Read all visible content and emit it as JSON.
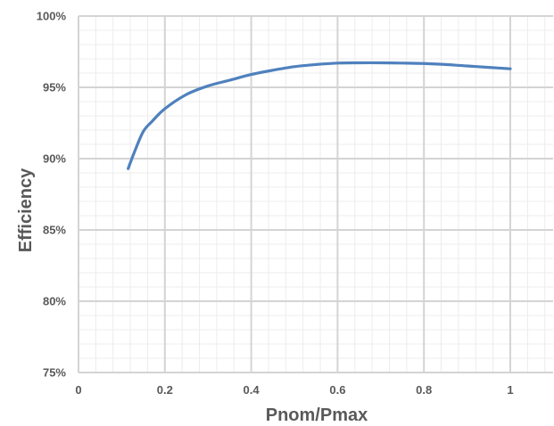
{
  "chart_data": {
    "type": "line",
    "title": "",
    "xlabel": "Pnom/Pmax",
    "ylabel": "Efficiency",
    "xlim": [
      0,
      1.1
    ],
    "ylim": [
      75,
      100
    ],
    "x_ticks": [
      0,
      0.2,
      0.4,
      0.6,
      0.8,
      1
    ],
    "x_tick_labels": [
      "0",
      "0.2",
      "0.4",
      "0.6",
      "0.8",
      "1"
    ],
    "y_ticks": [
      75,
      80,
      85,
      90,
      95,
      100
    ],
    "y_tick_labels": [
      "75%",
      "80%",
      "85%",
      "90%",
      "95%",
      "100%"
    ],
    "grid": "major and minor",
    "legend": "none",
    "series": [
      {
        "color": "#4f81bd",
        "x": [
          0.115,
          0.13,
          0.15,
          0.17,
          0.2,
          0.25,
          0.3,
          0.35,
          0.4,
          0.45,
          0.5,
          0.55,
          0.6,
          0.65,
          0.7,
          0.75,
          0.8,
          0.85,
          0.9,
          0.95,
          1.0
        ],
        "y": [
          89.3,
          90.5,
          91.9,
          92.6,
          93.5,
          94.5,
          95.1,
          95.5,
          95.9,
          96.2,
          96.45,
          96.6,
          96.7,
          96.72,
          96.72,
          96.7,
          96.67,
          96.6,
          96.5,
          96.4,
          96.3
        ]
      }
    ]
  }
}
